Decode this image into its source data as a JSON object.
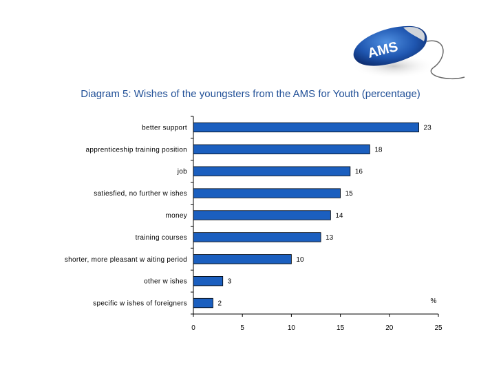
{
  "logo": {
    "text": "AMS"
  },
  "chart_data": {
    "type": "bar",
    "orientation": "horizontal",
    "title": "Diagram 5: Wishes of the youngsters from the AMS for Youth (percentage)",
    "unit_label": "%",
    "categories": [
      "better support",
      "apprenticeship training position",
      "job",
      "satiesfied, no further w ishes",
      "money",
      "training courses",
      "shorter, more pleasant w aiting period",
      "other w ishes",
      "specific w ishes of foreigners"
    ],
    "values": [
      23,
      18,
      16,
      15,
      14,
      13,
      10,
      3,
      2
    ],
    "xlim": [
      0,
      25
    ],
    "xticks": [
      0,
      5,
      10,
      15,
      20,
      25
    ],
    "bar_color": "#1b5fbf",
    "grid": false
  }
}
